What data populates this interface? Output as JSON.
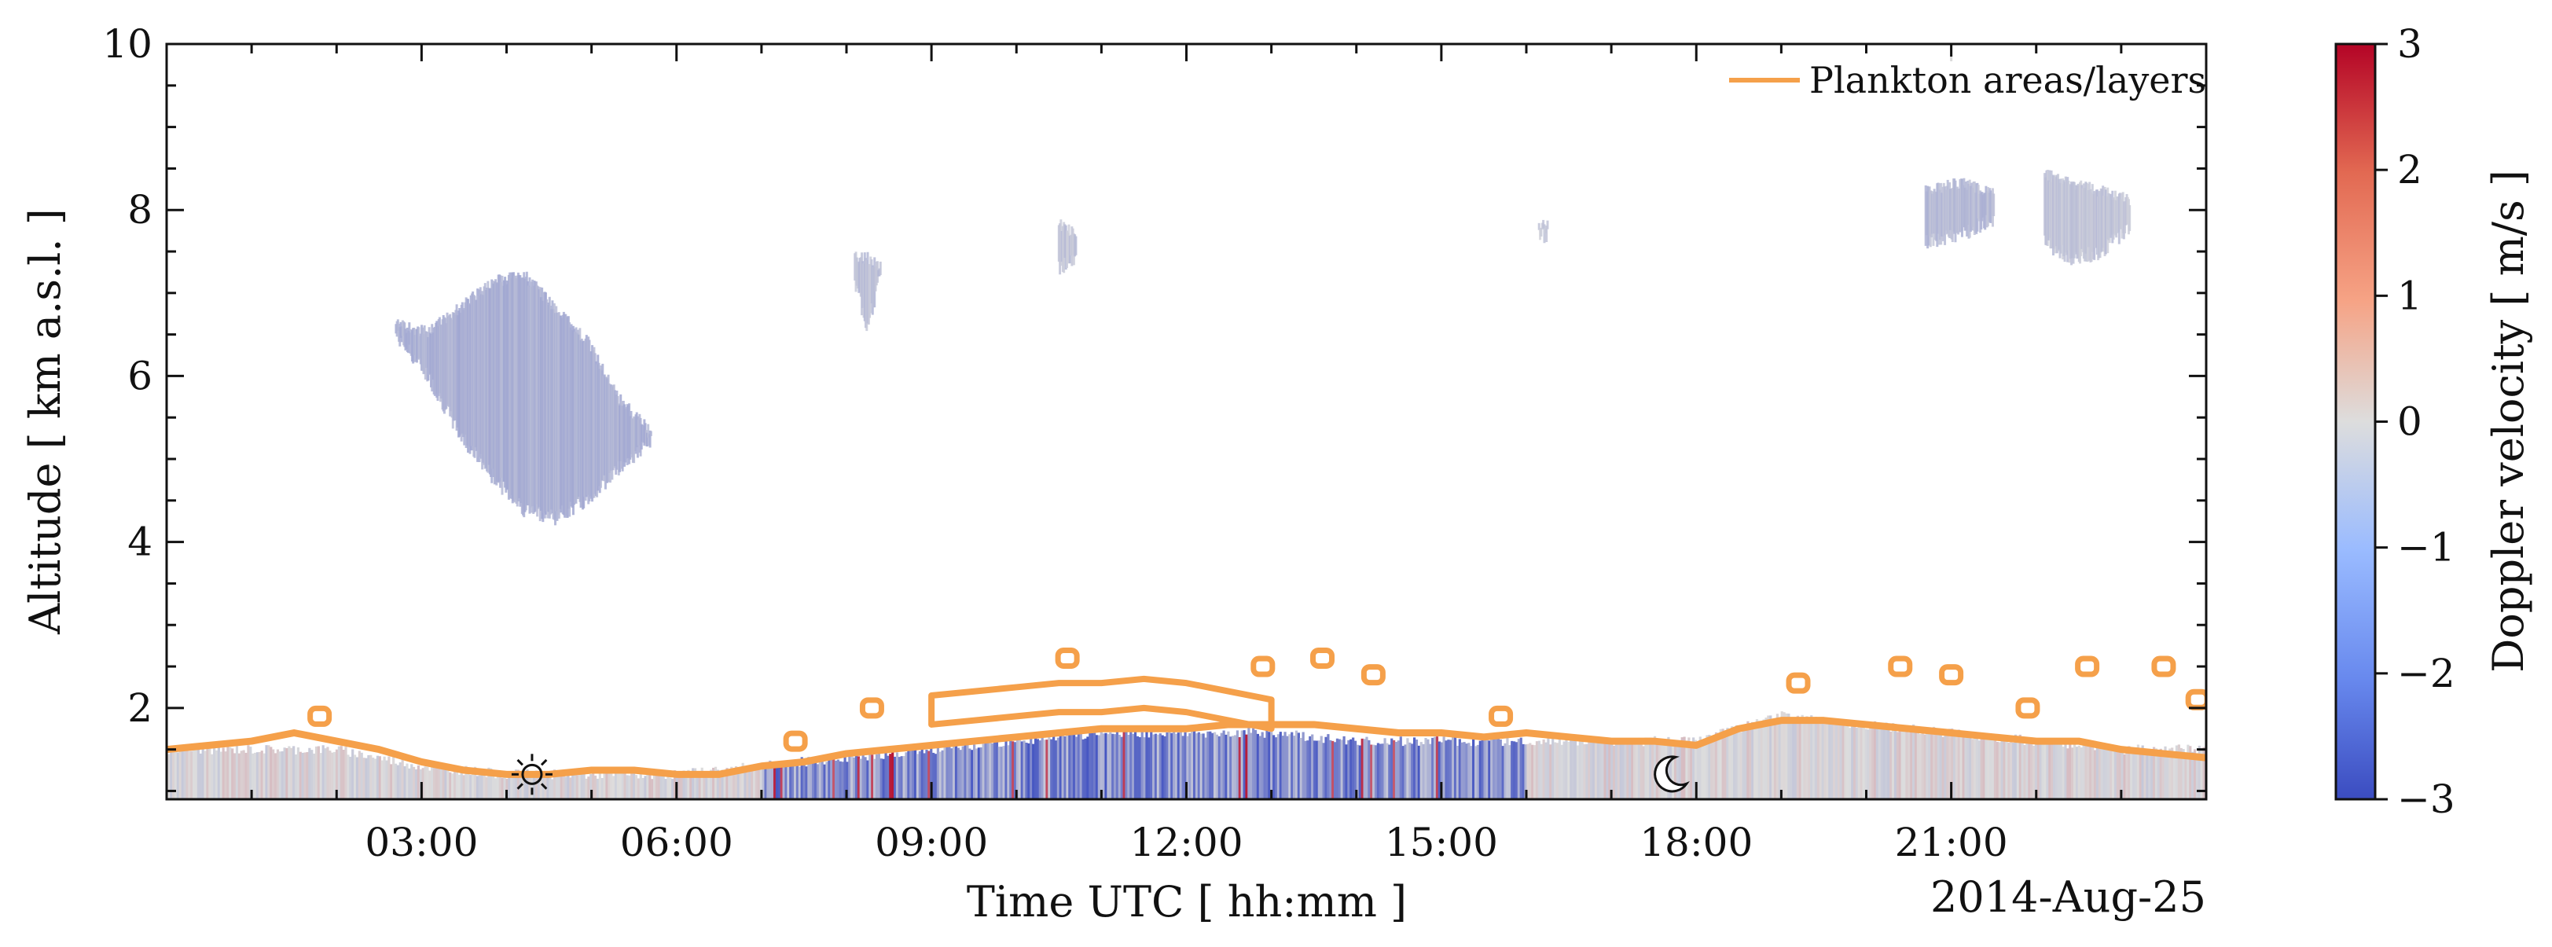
{
  "chart_data": {
    "type": "heatmap",
    "date": "2014-Aug-25",
    "xlabel": "Time UTC [ hh:mm ]",
    "ylabel": "Altitude [ km a.s.l. ]",
    "xlim": [
      0,
      24
    ],
    "ylim": [
      0.9,
      10
    ],
    "x_ticks": [
      {
        "value": 3,
        "label": "03:00"
      },
      {
        "value": 6,
        "label": "06:00"
      },
      {
        "value": 9,
        "label": "09:00"
      },
      {
        "value": 12,
        "label": "12:00"
      },
      {
        "value": 15,
        "label": "15:00"
      },
      {
        "value": 18,
        "label": "18:00"
      },
      {
        "value": 21,
        "label": "21:00"
      }
    ],
    "y_ticks": [
      {
        "value": 2,
        "label": "2"
      },
      {
        "value": 4,
        "label": "4"
      },
      {
        "value": 6,
        "label": "6"
      },
      {
        "value": 8,
        "label": "8"
      },
      {
        "value": 10,
        "label": "10"
      }
    ],
    "colorbar": {
      "label": "Doppler velocity [ m/s ]",
      "min": -3,
      "max": 3,
      "colormap": "coolwarm",
      "colors": {
        "low": "#3b4cc0",
        "mid": "#dddddd",
        "high": "#b40426"
      },
      "ticks": [
        {
          "value": 3,
          "label": "3"
        },
        {
          "value": 2,
          "label": "2"
        },
        {
          "value": 1,
          "label": "1"
        },
        {
          "value": 0,
          "label": "0"
        },
        {
          "value": -1,
          "label": "−1"
        },
        {
          "value": -2,
          "label": "−2"
        },
        {
          "value": -3,
          "label": "−3"
        }
      ]
    },
    "legend": {
      "position": "top-right",
      "entries": [
        {
          "name": "Plankton areas/layers",
          "color": "#f5a04a"
        }
      ]
    },
    "annotations": [
      {
        "icon": "sun-icon",
        "meaning": "sunrise",
        "x": 4.3,
        "y": 1.2
      },
      {
        "icon": "moon-icon",
        "meaning": "sunset",
        "x": 17.7,
        "y": 1.2
      }
    ],
    "clouds": [
      {
        "x0": 2.7,
        "x1": 5.7,
        "ytop": [
          6.7,
          6.6,
          6.9,
          7.2,
          7.3,
          6.9,
          6.5,
          5.8,
          5.4
        ],
        "ybot": [
          6.4,
          5.9,
          5.2,
          4.7,
          4.3,
          4.2,
          4.4,
          4.8,
          5.1
        ],
        "v": -0.9
      },
      {
        "x0": 8.1,
        "x1": 8.4,
        "ytop": [
          7.5,
          7.5,
          7.4
        ],
        "ybot": [
          7.0,
          6.5,
          7.1
        ],
        "v": -0.6
      },
      {
        "x0": 10.5,
        "x1": 10.7,
        "ytop": [
          7.9,
          7.8
        ],
        "ybot": [
          7.2,
          7.3
        ],
        "v": -0.5
      },
      {
        "x0": 16.15,
        "x1": 16.25,
        "ytop": [
          7.9,
          7.9
        ],
        "ybot": [
          7.6,
          7.6
        ],
        "v": -0.4
      },
      {
        "x0": 20.7,
        "x1": 21.5,
        "ytop": [
          8.3,
          8.4,
          8.3
        ],
        "ybot": [
          7.5,
          7.6,
          7.8
        ],
        "v": -0.7
      },
      {
        "x0": 22.1,
        "x1": 23.1,
        "ytop": [
          8.5,
          8.4,
          8.3,
          8.2
        ],
        "ybot": [
          7.5,
          7.3,
          7.4,
          7.7
        ],
        "v": -0.5
      }
    ],
    "boundary_layer": {
      "x": [
        0,
        1,
        2,
        3,
        4,
        5,
        6,
        7,
        8,
        9,
        10,
        11,
        12,
        13,
        14,
        15,
        16,
        17,
        18,
        19,
        20,
        21,
        22,
        23,
        24
      ],
      "top": [
        1.5,
        1.5,
        1.5,
        1.3,
        1.2,
        1.2,
        1.2,
        1.3,
        1.4,
        1.5,
        1.6,
        1.7,
        1.7,
        1.7,
        1.6,
        1.6,
        1.6,
        1.6,
        1.6,
        1.9,
        1.8,
        1.7,
        1.6,
        1.5,
        1.5
      ],
      "strong_turbulence": {
        "x0": 7.0,
        "x1": 16.0
      }
    },
    "plankton_outline": {
      "x": [
        0,
        0.5,
        1,
        1.5,
        2,
        2.5,
        3,
        3.5,
        4,
        4.5,
        5,
        5.5,
        6,
        6.5,
        7,
        7.5,
        8,
        8.5,
        9,
        9.5,
        10,
        10.5,
        11,
        11.5,
        12,
        12.5,
        13,
        13.5,
        14,
        14.5,
        15,
        15.5,
        16,
        16.5,
        17,
        17.5,
        18,
        18.5,
        19,
        19.5,
        20,
        20.5,
        21,
        21.5,
        22,
        22.5,
        23,
        23.5,
        24
      ],
      "y": [
        1.5,
        1.55,
        1.6,
        1.7,
        1.6,
        1.5,
        1.35,
        1.25,
        1.2,
        1.2,
        1.25,
        1.25,
        1.2,
        1.2,
        1.3,
        1.35,
        1.45,
        1.5,
        1.55,
        1.6,
        1.65,
        1.7,
        1.75,
        1.75,
        1.75,
        1.8,
        1.8,
        1.8,
        1.75,
        1.7,
        1.7,
        1.65,
        1.7,
        1.65,
        1.6,
        1.6,
        1.55,
        1.75,
        1.85,
        1.85,
        1.8,
        1.75,
        1.7,
        1.65,
        1.6,
        1.6,
        1.5,
        1.45,
        1.4
      ],
      "upper_layer": {
        "x": [
          9.0,
          9.5,
          10.0,
          10.5,
          11.0,
          11.5,
          12.0,
          12.5,
          13.0
        ],
        "y": [
          2.15,
          2.2,
          2.25,
          2.3,
          2.3,
          2.35,
          2.3,
          2.2,
          2.1
        ]
      },
      "blobs": [
        {
          "x": 1.8,
          "y": 1.9
        },
        {
          "x": 7.4,
          "y": 1.6
        },
        {
          "x": 8.3,
          "y": 2.0
        },
        {
          "x": 10.6,
          "y": 2.6
        },
        {
          "x": 12.9,
          "y": 2.5
        },
        {
          "x": 13.6,
          "y": 2.6
        },
        {
          "x": 14.2,
          "y": 2.4
        },
        {
          "x": 15.7,
          "y": 1.9
        },
        {
          "x": 19.2,
          "y": 2.3
        },
        {
          "x": 20.4,
          "y": 2.5
        },
        {
          "x": 21.0,
          "y": 2.4
        },
        {
          "x": 21.9,
          "y": 2.0
        },
        {
          "x": 22.6,
          "y": 2.5
        },
        {
          "x": 23.5,
          "y": 2.5
        },
        {
          "x": 23.9,
          "y": 2.1
        }
      ]
    }
  }
}
